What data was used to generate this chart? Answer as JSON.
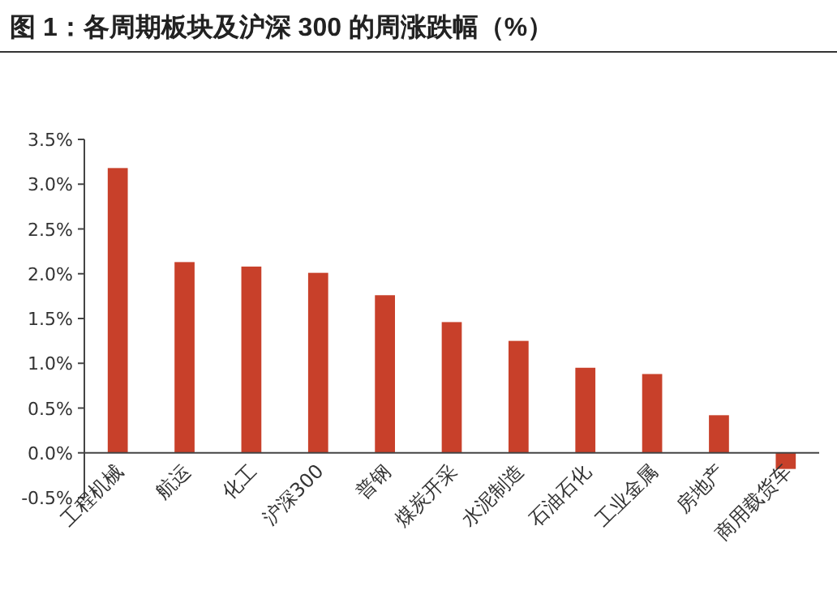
{
  "chart_data": {
    "type": "bar",
    "title": "图 1：各周期板块及沪深 300 的周涨跌幅（%）",
    "categories": [
      "工程机械",
      "航运",
      "化工",
      "沪深300",
      "普钢",
      "煤炭开采",
      "水泥制造",
      "石油石化",
      "工业金属",
      "房地产",
      "商用载货车"
    ],
    "values": [
      3.18,
      2.13,
      2.08,
      2.01,
      1.76,
      1.46,
      1.25,
      0.95,
      0.88,
      0.42,
      -0.18
    ],
    "color": "#c8402a",
    "ylim": [
      -0.5,
      3.5
    ],
    "yticks": [
      {
        "value": -0.5,
        "label": "-0.5%"
      },
      {
        "value": 0.0,
        "label": "0.0%"
      },
      {
        "value": 0.5,
        "label": "0.5%"
      },
      {
        "value": 1.0,
        "label": "1.0%"
      },
      {
        "value": 1.5,
        "label": "1.5%"
      },
      {
        "value": 2.0,
        "label": "2.0%"
      },
      {
        "value": 2.5,
        "label": "2.5%"
      },
      {
        "value": 3.0,
        "label": "3.0%"
      },
      {
        "value": 3.5,
        "label": "3.5%"
      }
    ]
  }
}
